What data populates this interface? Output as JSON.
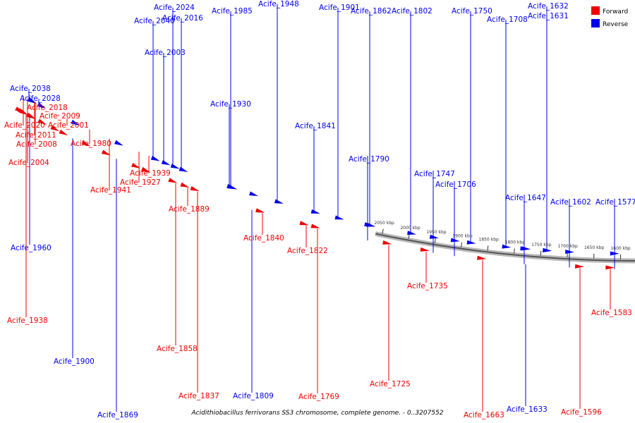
{
  "title": "Acidithiobacillus ferrivorans SS3 chromosome, complete genome. - 0..3207552",
  "legend": [
    {
      "label": "Forward",
      "color": "#ee0000"
    },
    {
      "label": "Reverse",
      "color": "#0000ee"
    }
  ],
  "ticks": [
    "2050 kbp",
    "2000 kbp",
    "1950 kbp",
    "1900 kbp",
    "1850 kbp",
    "1800 kbp",
    "1750 kbp",
    "1700 kbp",
    "1650 kbp",
    "1600 kbp"
  ],
  "genes": [
    {
      "label": "Acife_2040",
      "strand": "reverse"
    },
    {
      "label": "Acife_2024",
      "strand": "reverse"
    },
    {
      "label": "Acife_2016",
      "strand": "reverse"
    },
    {
      "label": "Acife_2003",
      "strand": "reverse"
    },
    {
      "label": "Acife_1985",
      "strand": "reverse"
    },
    {
      "label": "Acife_1948",
      "strand": "reverse"
    },
    {
      "label": "Acife_1901",
      "strand": "reverse"
    },
    {
      "label": "Acife_1862",
      "strand": "reverse"
    },
    {
      "label": "Acife_1802",
      "strand": "reverse"
    },
    {
      "label": "Acife_1750",
      "strand": "reverse"
    },
    {
      "label": "Acife_1708",
      "strand": "reverse"
    },
    {
      "label": "Acife_1632",
      "strand": "reverse"
    },
    {
      "label": "Acife_1631",
      "strand": "reverse"
    },
    {
      "label": "Acife_2038",
      "strand": "reverse"
    },
    {
      "label": "Acife_2028",
      "strand": "reverse"
    },
    {
      "label": "Acife_2018",
      "strand": "forward"
    },
    {
      "label": "Acife_2009",
      "strand": "forward"
    },
    {
      "label": "Acife_2020",
      "strand": "forward"
    },
    {
      "label": "Acife_2001",
      "strand": "forward"
    },
    {
      "label": "Acife_2011",
      "strand": "forward"
    },
    {
      "label": "Acife_2008",
      "strand": "forward"
    },
    {
      "label": "Acife_1980",
      "strand": "forward"
    },
    {
      "label": "Acife_2004",
      "strand": "forward"
    },
    {
      "label": "Acife_1939",
      "strand": "forward"
    },
    {
      "label": "Acife_1927",
      "strand": "forward"
    },
    {
      "label": "Acife_1941",
      "strand": "forward"
    },
    {
      "label": "Acife_1930",
      "strand": "reverse"
    },
    {
      "label": "Acife_1841",
      "strand": "reverse"
    },
    {
      "label": "Acife_1790",
      "strand": "reverse"
    },
    {
      "label": "Acife_1747",
      "strand": "reverse"
    },
    {
      "label": "Acife_1706",
      "strand": "reverse"
    },
    {
      "label": "Acife_1647",
      "strand": "reverse"
    },
    {
      "label": "Acife_1602",
      "strand": "reverse"
    },
    {
      "label": "Acife_1577",
      "strand": "reverse"
    },
    {
      "label": "Acife_1960",
      "strand": "reverse"
    },
    {
      "label": "Acife_1889",
      "strand": "forward"
    },
    {
      "label": "Acife_1840",
      "strand": "forward"
    },
    {
      "label": "Acife_1822",
      "strand": "forward"
    },
    {
      "label": "Acife_1735",
      "strand": "forward"
    },
    {
      "label": "Acife_1938",
      "strand": "forward"
    },
    {
      "label": "Acife_1858",
      "strand": "forward"
    },
    {
      "label": "Acife_1837",
      "strand": "forward"
    },
    {
      "label": "Acife_1809",
      "strand": "reverse"
    },
    {
      "label": "Acife_1769",
      "strand": "forward"
    },
    {
      "label": "Acife_1725",
      "strand": "forward"
    },
    {
      "label": "Acife_1663",
      "strand": "forward"
    },
    {
      "label": "Acife_1633",
      "strand": "reverse"
    },
    {
      "label": "Acife_1596",
      "strand": "forward"
    },
    {
      "label": "Acife_1583",
      "strand": "forward"
    },
    {
      "label": "Acife_1869",
      "strand": "reverse"
    },
    {
      "label": "Acife_1900",
      "strand": "reverse"
    }
  ]
}
